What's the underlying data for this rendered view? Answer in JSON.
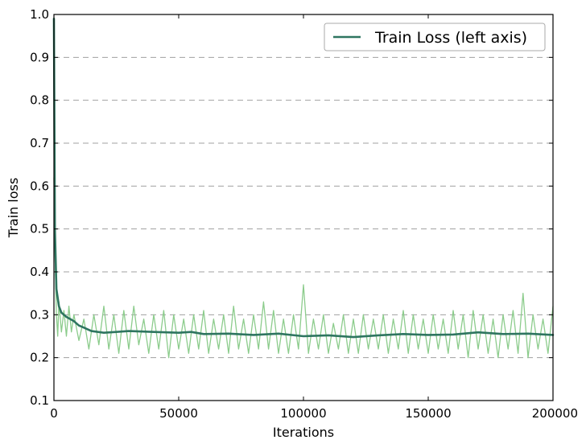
{
  "chart_data": {
    "type": "line",
    "title": "",
    "xlabel": "Iterations",
    "ylabel": "Train loss",
    "xlim": [
      0,
      200000
    ],
    "ylim": [
      0.1,
      1.0
    ],
    "xticks": [
      0,
      50000,
      100000,
      150000,
      200000
    ],
    "xtick_labels": [
      "0",
      "50000",
      "100000",
      "150000",
      "200000"
    ],
    "yticks": [
      0.1,
      0.2,
      0.3,
      0.4,
      0.5,
      0.6,
      0.7,
      0.8,
      0.9,
      1.0
    ],
    "ytick_labels": [
      "0.1",
      "0.2",
      "0.3",
      "0.4",
      "0.5",
      "0.6",
      "0.7",
      "0.8",
      "0.9",
      "1.0"
    ],
    "grid": {
      "y": true,
      "x": false,
      "style": "dashed"
    },
    "legend": {
      "placement": "top-right",
      "entries": [
        "Train Loss (left axis)"
      ]
    },
    "colors": {
      "raw": "#8ccc8c",
      "smoothed": "#2e7560",
      "grid": "#a0a0a0"
    },
    "series": [
      {
        "name": "Train Loss (left axis)",
        "role": "smoothed",
        "x": [
          0,
          400,
          1000,
          2000,
          3000,
          5000,
          8000,
          10000,
          12000,
          15000,
          20000,
          25000,
          30000,
          40000,
          50000,
          55000,
          60000,
          70000,
          80000,
          90000,
          100000,
          110000,
          120000,
          130000,
          140000,
          150000,
          160000,
          170000,
          180000,
          190000,
          200000
        ],
        "y": [
          0.99,
          0.5,
          0.36,
          0.32,
          0.305,
          0.295,
          0.285,
          0.275,
          0.27,
          0.262,
          0.258,
          0.26,
          0.262,
          0.26,
          0.258,
          0.26,
          0.255,
          0.256,
          0.253,
          0.256,
          0.25,
          0.252,
          0.248,
          0.252,
          0.255,
          0.253,
          0.254,
          0.259,
          0.255,
          0.256,
          0.253
        ]
      },
      {
        "role": "raw",
        "x": [
          0,
          500,
          1000,
          1500,
          2000,
          3000,
          4000,
          5000,
          6000,
          7000,
          8000,
          10000,
          12000,
          14000,
          16000,
          18000,
          20000,
          22000,
          24000,
          26000,
          28000,
          30000,
          32000,
          34000,
          36000,
          38000,
          40000,
          42000,
          44000,
          46000,
          48000,
          50000,
          52000,
          54000,
          56000,
          58000,
          60000,
          62000,
          64000,
          66000,
          68000,
          70000,
          72000,
          74000,
          76000,
          78000,
          80000,
          82000,
          84000,
          86000,
          88000,
          90000,
          92000,
          94000,
          96000,
          98000,
          100000,
          102000,
          104000,
          106000,
          108000,
          110000,
          112000,
          114000,
          116000,
          118000,
          120000,
          122000,
          124000,
          126000,
          128000,
          130000,
          132000,
          134000,
          136000,
          138000,
          140000,
          142000,
          144000,
          146000,
          148000,
          150000,
          152000,
          154000,
          156000,
          158000,
          160000,
          162000,
          164000,
          166000,
          168000,
          170000,
          172000,
          174000,
          176000,
          178000,
          180000,
          182000,
          184000,
          186000,
          188000,
          190000,
          192000,
          194000,
          196000,
          198000,
          200000
        ],
        "y": [
          0.62,
          0.43,
          0.3,
          0.25,
          0.33,
          0.26,
          0.31,
          0.25,
          0.32,
          0.26,
          0.3,
          0.24,
          0.29,
          0.22,
          0.3,
          0.23,
          0.32,
          0.22,
          0.3,
          0.21,
          0.31,
          0.22,
          0.32,
          0.23,
          0.29,
          0.21,
          0.3,
          0.22,
          0.31,
          0.2,
          0.3,
          0.22,
          0.29,
          0.21,
          0.3,
          0.22,
          0.31,
          0.21,
          0.29,
          0.22,
          0.3,
          0.21,
          0.32,
          0.22,
          0.29,
          0.21,
          0.3,
          0.22,
          0.33,
          0.22,
          0.31,
          0.21,
          0.29,
          0.21,
          0.3,
          0.22,
          0.37,
          0.21,
          0.29,
          0.22,
          0.3,
          0.21,
          0.28,
          0.22,
          0.3,
          0.21,
          0.29,
          0.21,
          0.3,
          0.22,
          0.29,
          0.22,
          0.3,
          0.21,
          0.29,
          0.22,
          0.31,
          0.21,
          0.3,
          0.22,
          0.29,
          0.21,
          0.3,
          0.22,
          0.29,
          0.21,
          0.31,
          0.22,
          0.3,
          0.2,
          0.31,
          0.22,
          0.3,
          0.21,
          0.29,
          0.2,
          0.3,
          0.22,
          0.31,
          0.21,
          0.35,
          0.2,
          0.3,
          0.22,
          0.29,
          0.21,
          0.32
        ]
      }
    ]
  }
}
